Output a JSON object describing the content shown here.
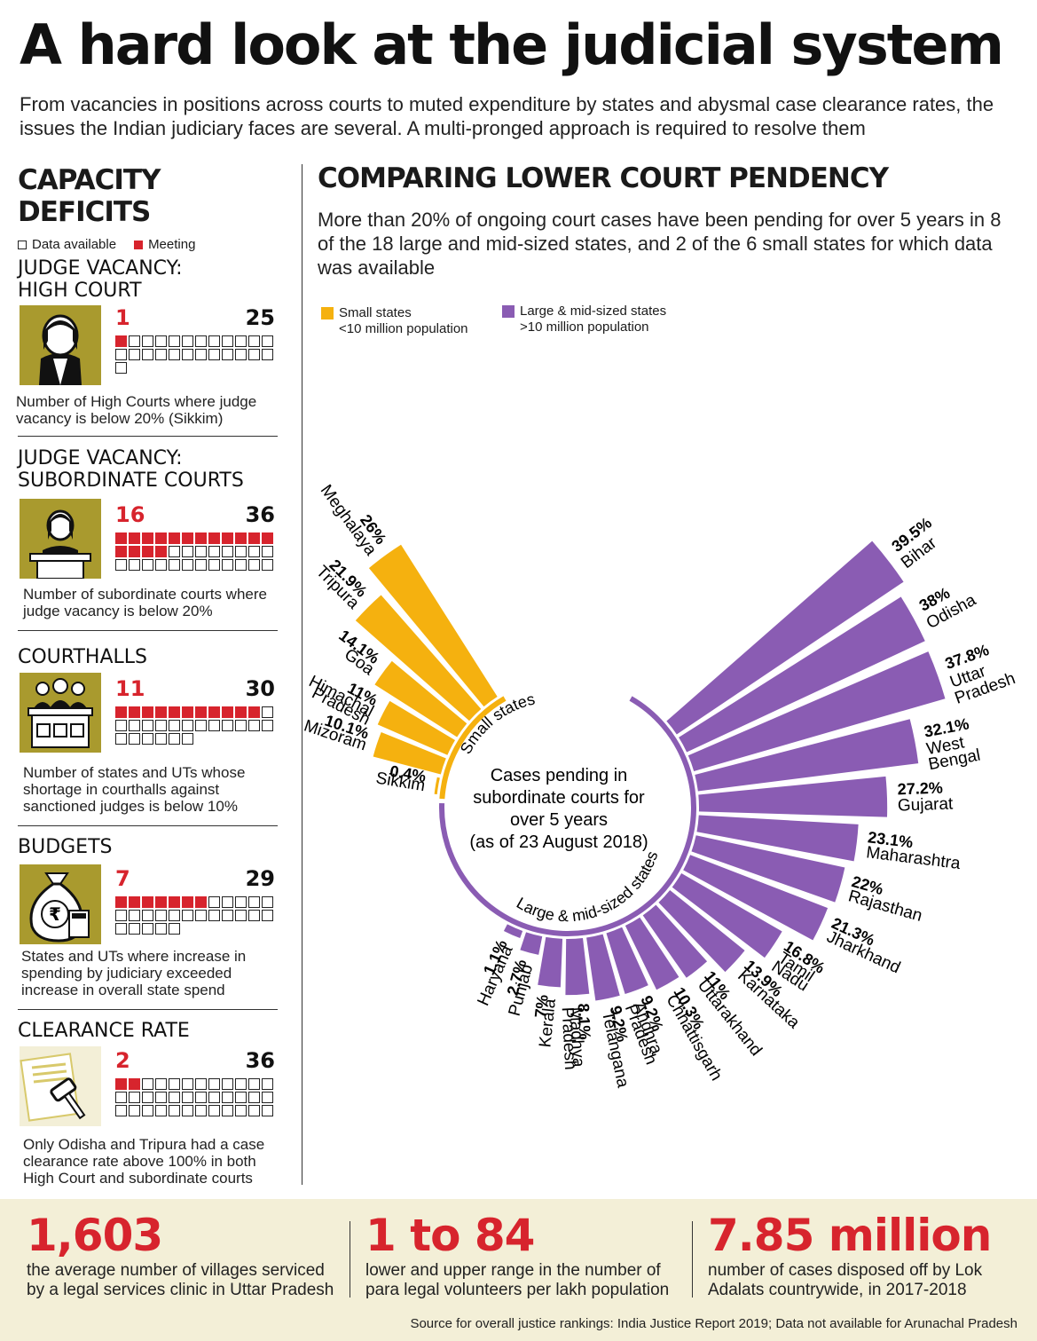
{
  "title": "A hard look at the judicial system",
  "intro": "From vacancies in positions across courts to muted expenditure by states and abysmal case clearance rates, the issues the Indian judiciary faces are several. A multi-pronged approach is required to resolve them",
  "capacity": {
    "title_line1": "CAPACITY",
    "title_line2": "DEFICITS",
    "legend_available": "Data available",
    "legend_meeting": "Meeting",
    "sections": [
      {
        "title1": "JUDGE VACANCY:",
        "title2": "HIGH COURT",
        "meeting": 1,
        "available": 25,
        "icon": "judge-icon",
        "text": "Number of High Courts where judge vacancy is below 20% (Sikkim)"
      },
      {
        "title1": "JUDGE VACANCY:",
        "title2": "SUBORDINATE COURTS",
        "meeting": 16,
        "available": 36,
        "icon": "judge-podium-icon",
        "text": "Number of subordinate courts where judge vacancy is below 20%"
      },
      {
        "title1": "COURTHALLS",
        "title2": "",
        "meeting": 11,
        "available": 30,
        "icon": "courthall-icon",
        "text": "Number of states and UTs whose shortage in courthalls against sanctioned judges is below 10%"
      },
      {
        "title1": "BUDGETS",
        "title2": "",
        "meeting": 7,
        "available": 29,
        "icon": "money-bag-icon",
        "text": "States and UTs where increase in spending by judiciary exceeded increase in overall state spend"
      },
      {
        "title1": "CLEARANCE RATE",
        "title2": "",
        "meeting": 2,
        "available": 36,
        "icon": "gavel-document-icon",
        "text": "Only Odisha and Tripura had a case clearance rate above 100% in both High Court and subordinate courts"
      }
    ]
  },
  "pendency": {
    "title": "COMPARING LOWER COURT PENDENCY",
    "subtitle": "More than 20% of ongoing court cases have been pending for over 5 years in 8 of the 18 large and mid-sized states, and 2 of the 6 small states for which data was available",
    "legend": [
      {
        "label1": "Small states",
        "label2": "<10 million population",
        "color": "#f5b10f"
      },
      {
        "label1": "Large & mid-sized states",
        "label2": ">10 million population",
        "color": "#8a5cb3"
      }
    ]
  },
  "chart_data": {
    "type": "bar",
    "layout": "radial",
    "center_label": [
      "Cases pending in",
      "subordinate courts for",
      "over 5 years",
      "(as of 23 August 2018)"
    ],
    "series": [
      {
        "name": "Small states",
        "ring_label": "Small states",
        "color": "#f5b10f",
        "categories": [
          "Sikkim",
          "Mizoram",
          "Himachal Pradesh",
          "Goa",
          "Tripura",
          "Meghalaya"
        ],
        "labels": [
          "0.4%",
          "10.1%",
          "11%",
          "14.1%",
          "21.9%",
          "26%"
        ],
        "values": [
          0.4,
          10.1,
          11,
          14.1,
          21.9,
          26
        ]
      },
      {
        "name": "Large & mid-sized states",
        "ring_label": "Large & mid-sized states",
        "color": "#8a5cb3",
        "categories": [
          "Bihar",
          "Odisha",
          "Uttar Pradesh",
          "West Bengal",
          "Gujarat",
          "Maharashtra",
          "Rajasthan",
          "Jharkhand",
          "Tamil Nadu",
          "Karnataka",
          "Uttarakhand",
          "Chhattisgarh",
          "Andhra Pradesh",
          "Telangana",
          "Madhya Pradesh",
          "Kerala",
          "Punjab",
          "Haryana"
        ],
        "labels": [
          "39.5%",
          "38%",
          "37.8%",
          "32.1%",
          "27.2%",
          "23.1%",
          "22%",
          "21.3%",
          "16.8%",
          "13.9%",
          "11%",
          "10.3%",
          "9.2%",
          "9.2%",
          "8.1%",
          "7%",
          "2.7%",
          "1.1%"
        ],
        "values": [
          39.5,
          38,
          37.8,
          32.1,
          27.2,
          23.1,
          22,
          21.3,
          16.8,
          13.9,
          11,
          10.3,
          9.2,
          9.2,
          8.1,
          7,
          2.7,
          1.1
        ]
      }
    ]
  },
  "footer": {
    "stats": [
      {
        "value": "1,603",
        "desc1": "the average number of villages serviced",
        "desc2": "by a legal services clinic in Uttar Pradesh"
      },
      {
        "value": "1 to 84",
        "desc1": "lower and upper range in the number of",
        "desc2": "para legal volunteers  per lakh population"
      },
      {
        "value": "7.85 million",
        "desc1": "number of cases disposed off by Lok",
        "desc2": "Adalats countrywide, in 2017-2018"
      }
    ],
    "source": "Source for overall justice rankings: India Justice Report 2019; Data not available for Arunachal Pradesh"
  }
}
